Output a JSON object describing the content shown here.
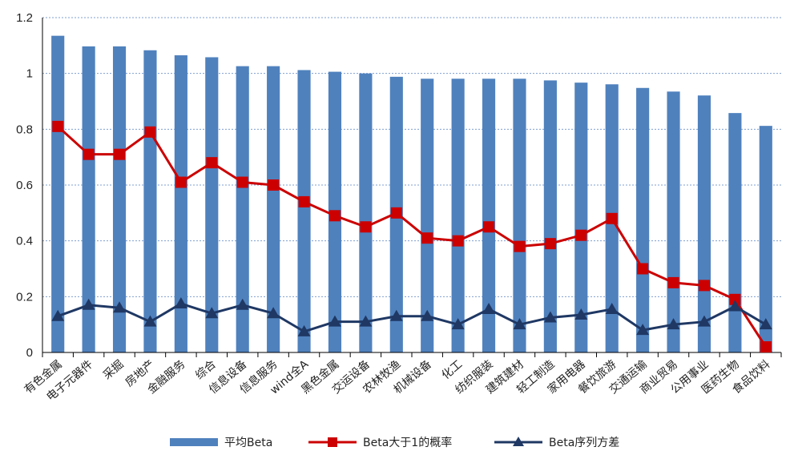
{
  "chart_data": {
    "type": "bar+line",
    "title": "",
    "xlabel": "",
    "ylabel": "",
    "ylim": [
      0,
      1.2
    ],
    "yticks": [
      "0",
      "0.2",
      "0.4",
      "0.6",
      "0.8",
      "1",
      "1.2"
    ],
    "grid": true,
    "legend_position": "bottom",
    "categories": [
      "有色金属",
      "电子元器件",
      "采掘",
      "房地产",
      "金融服务",
      "综合",
      "信息设备",
      "信息服务",
      "wind全A",
      "黑色金属",
      "交运设备",
      "农林牧渔",
      "机械设备",
      "化工",
      "纺织服装",
      "建筑建材",
      "轻工制造",
      "家用电器",
      "餐饮旅游",
      "交通运输",
      "商业贸易",
      "公用事业",
      "医药生物",
      "食品饮料"
    ],
    "series": [
      {
        "name": "平均Beta",
        "kind": "bar",
        "color": "#4f81bd",
        "values": [
          1.135,
          1.097,
          1.097,
          1.083,
          1.065,
          1.058,
          1.026,
          1.026,
          1.012,
          1.006,
          1.0,
          0.988,
          0.981,
          0.981,
          0.981,
          0.981,
          0.975,
          0.967,
          0.961,
          0.948,
          0.935,
          0.921,
          0.858,
          0.812
        ]
      },
      {
        "name": "Beta大于1的概率",
        "kind": "line",
        "marker": "square",
        "color": "#cc0000",
        "values": [
          0.81,
          0.71,
          0.71,
          0.79,
          0.61,
          0.68,
          0.61,
          0.6,
          0.54,
          0.49,
          0.45,
          0.5,
          0.41,
          0.4,
          0.45,
          0.38,
          0.39,
          0.42,
          0.48,
          0.3,
          0.25,
          0.24,
          0.19,
          0.02
        ]
      },
      {
        "name": "Beta序列方差",
        "kind": "line",
        "marker": "triangle",
        "color": "#1f3864",
        "values": [
          0.13,
          0.17,
          0.16,
          0.11,
          0.175,
          0.14,
          0.17,
          0.14,
          0.075,
          0.11,
          0.11,
          0.13,
          0.13,
          0.1,
          0.155,
          0.1,
          0.125,
          0.135,
          0.155,
          0.08,
          0.1,
          0.11,
          0.165,
          0.1
        ]
      }
    ]
  }
}
